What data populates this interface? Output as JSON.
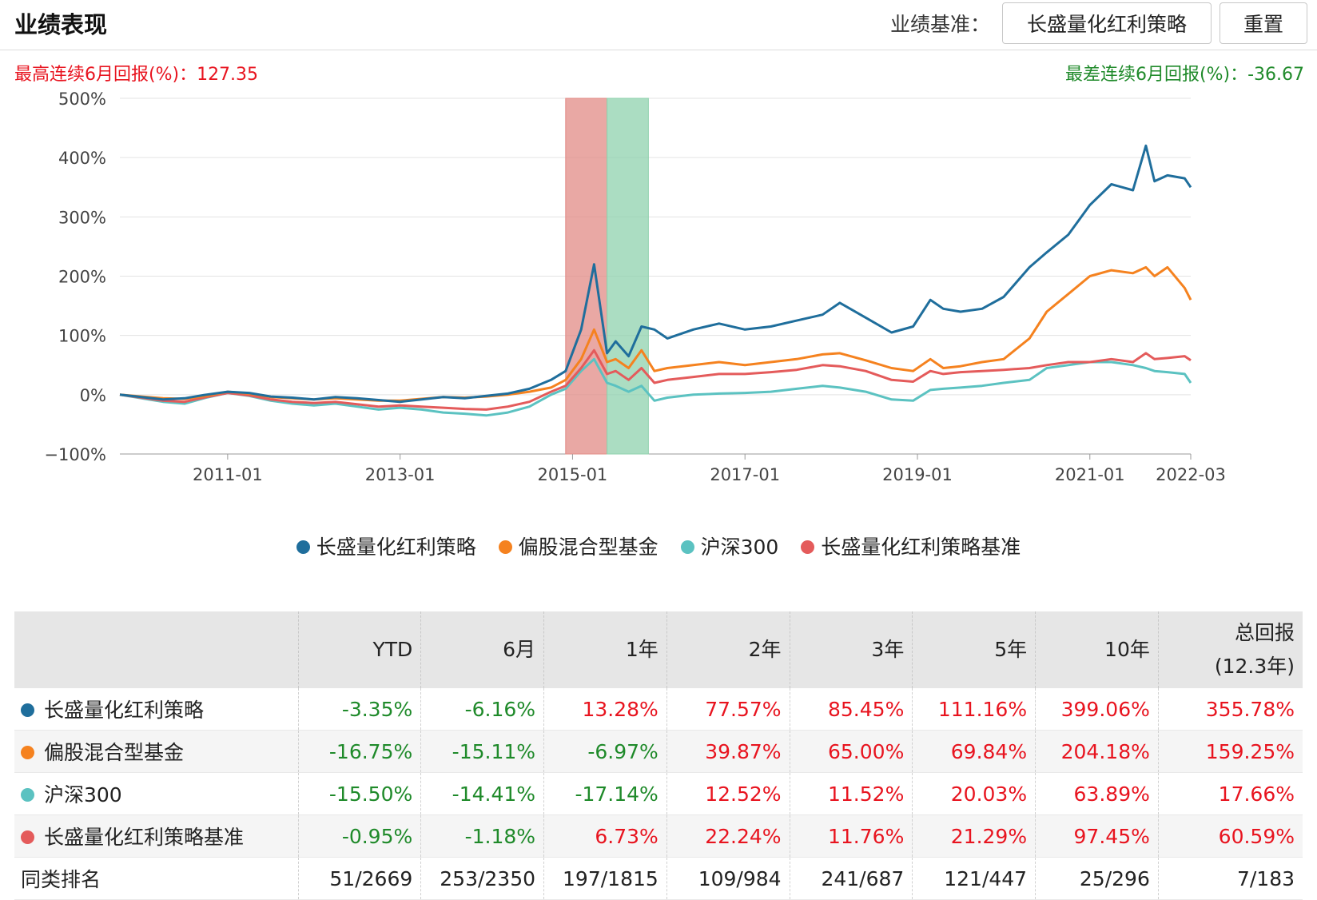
{
  "header": {
    "title": "业绩表现",
    "benchmark_label": "业绩基准：",
    "benchmark_value": "长盛量化红利策略",
    "reset_label": "重置"
  },
  "stats": {
    "best": "最高连续6月回报(%)：127.35",
    "worst": "最差连续6月回报(%)：-36.67"
  },
  "colors": {
    "fund": "#1f6e9c",
    "category": "#f5821f",
    "hs300": "#5bc2c1",
    "benchmark": "#e45b5b",
    "best_band": "#e28b86",
    "worst_band": "#8fd1ad",
    "positive": "#e8141f",
    "negative": "#1f8a2a"
  },
  "chart_data": {
    "type": "line",
    "ylim": [
      -100,
      500
    ],
    "xlim": [
      2009.75,
      2022.17
    ],
    "y_ticks": [
      "500%",
      "400%",
      "300%",
      "200%",
      "100%",
      "0%",
      "−100%"
    ],
    "x_tick_labels": [
      "2011-01",
      "2013-01",
      "2015-01",
      "2017-01",
      "2019-01",
      "2021-01",
      "2022-03"
    ],
    "x_tick_positions": [
      2011.0,
      2013.0,
      2015.0,
      2017.0,
      2019.0,
      2021.0,
      2022.17
    ],
    "highlight_bands": [
      {
        "name": "best-6m",
        "from": 2014.92,
        "to": 2015.4
      },
      {
        "name": "worst-6m",
        "from": 2015.4,
        "to": 2015.88
      }
    ],
    "x": [
      2009.75,
      2010.0,
      2010.25,
      2010.5,
      2010.75,
      2011.0,
      2011.25,
      2011.5,
      2011.75,
      2012.0,
      2012.25,
      2012.5,
      2012.75,
      2013.0,
      2013.25,
      2013.5,
      2013.75,
      2014.0,
      2014.25,
      2014.5,
      2014.75,
      2014.92,
      2015.1,
      2015.25,
      2015.4,
      2015.5,
      2015.65,
      2015.8,
      2015.95,
      2016.1,
      2016.4,
      2016.7,
      2017.0,
      2017.3,
      2017.6,
      2017.9,
      2018.1,
      2018.4,
      2018.7,
      2018.95,
      2019.15,
      2019.3,
      2019.5,
      2019.75,
      2020.0,
      2020.3,
      2020.5,
      2020.75,
      2021.0,
      2021.25,
      2021.5,
      2021.65,
      2021.75,
      2021.9,
      2022.1,
      2022.17
    ],
    "series": [
      {
        "name": "长盛量化红利策略",
        "values": [
          0,
          -4,
          -8,
          -6,
          0,
          5,
          3,
          -3,
          -5,
          -8,
          -4,
          -6,
          -9,
          -12,
          -8,
          -4,
          -6,
          -2,
          2,
          10,
          25,
          40,
          110,
          220,
          70,
          90,
          65,
          115,
          110,
          95,
          110,
          120,
          110,
          115,
          125,
          135,
          155,
          130,
          105,
          115,
          160,
          145,
          140,
          145,
          165,
          215,
          240,
          270,
          320,
          355,
          345,
          420,
          360,
          370,
          365,
          350
        ]
      },
      {
        "name": "偏股混合型基金",
        "values": [
          0,
          -3,
          -6,
          -7,
          -2,
          5,
          2,
          -4,
          -6,
          -8,
          -6,
          -8,
          -10,
          -10,
          -7,
          -4,
          -5,
          -3,
          0,
          5,
          12,
          25,
          60,
          110,
          55,
          60,
          45,
          75,
          40,
          45,
          50,
          55,
          50,
          55,
          60,
          68,
          70,
          58,
          45,
          40,
          60,
          45,
          48,
          55,
          60,
          95,
          140,
          170,
          200,
          210,
          205,
          215,
          200,
          215,
          180,
          160
        ]
      },
      {
        "name": "沪深300",
        "values": [
          0,
          -6,
          -12,
          -15,
          -5,
          3,
          -2,
          -10,
          -15,
          -18,
          -15,
          -20,
          -25,
          -22,
          -25,
          -30,
          -32,
          -35,
          -30,
          -20,
          0,
          10,
          40,
          60,
          20,
          15,
          5,
          15,
          -10,
          -5,
          0,
          2,
          3,
          5,
          10,
          15,
          12,
          5,
          -8,
          -10,
          8,
          10,
          12,
          15,
          20,
          25,
          45,
          50,
          55,
          55,
          50,
          45,
          40,
          38,
          35,
          20
        ]
      },
      {
        "name": "长盛量化红利策略基准",
        "values": [
          0,
          -5,
          -10,
          -12,
          -4,
          3,
          -1,
          -8,
          -12,
          -14,
          -12,
          -16,
          -20,
          -18,
          -20,
          -22,
          -24,
          -25,
          -20,
          -12,
          5,
          15,
          45,
          75,
          35,
          40,
          25,
          45,
          20,
          25,
          30,
          35,
          35,
          38,
          42,
          50,
          48,
          40,
          25,
          22,
          40,
          35,
          38,
          40,
          42,
          45,
          50,
          55,
          55,
          60,
          55,
          70,
          60,
          62,
          65,
          58
        ]
      }
    ]
  },
  "table": {
    "headers": [
      "",
      "YTD",
      "6月",
      "1年",
      "2年",
      "3年",
      "5年",
      "10年",
      "总回报(12.3年)"
    ],
    "header_total_line1": "总回报",
    "header_total_line2": "(12.3年)",
    "rows": [
      {
        "name": "长盛量化红利策略",
        "color": "#1f6e9c",
        "values": [
          "-3.35%",
          "-6.16%",
          "13.28%",
          "77.57%",
          "85.45%",
          "111.16%",
          "399.06%",
          "355.78%"
        ]
      },
      {
        "name": "偏股混合型基金",
        "color": "#f5821f",
        "values": [
          "-16.75%",
          "-15.11%",
          "-6.97%",
          "39.87%",
          "65.00%",
          "69.84%",
          "204.18%",
          "159.25%"
        ]
      },
      {
        "name": "沪深300",
        "color": "#5bc2c1",
        "values": [
          "-15.50%",
          "-14.41%",
          "-17.14%",
          "12.52%",
          "11.52%",
          "20.03%",
          "63.89%",
          "17.66%"
        ]
      },
      {
        "name": "长盛量化红利策略基准",
        "color": "#e45b5b",
        "values": [
          "-0.95%",
          "-1.18%",
          "6.73%",
          "22.24%",
          "11.76%",
          "21.29%",
          "97.45%",
          "60.59%"
        ]
      }
    ],
    "rank_label": "同类排名",
    "rank_values": [
      "51/2669",
      "253/2350",
      "197/1815",
      "109/984",
      "241/687",
      "121/447",
      "25/296",
      "7/183"
    ]
  }
}
